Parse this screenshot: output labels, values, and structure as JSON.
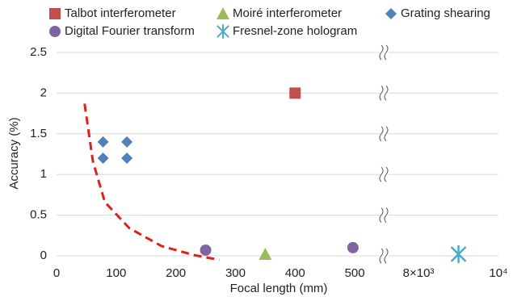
{
  "chart_data": {
    "type": "scatter",
    "x_label": "Focal length (mm)",
    "y_label": "Accuracy (%)",
    "ylim": [
      0,
      2.5
    ],
    "yticks": [
      0,
      0.5,
      1,
      1.5,
      2,
      2.5
    ],
    "x_segments": [
      {
        "xlim": [
          0,
          550
        ],
        "xticks": [
          0,
          100,
          200,
          300,
          400,
          500
        ]
      },
      {
        "xlim": [
          7150,
          10000
        ],
        "xticks": [
          {
            "value": 8000,
            "label": "8×10³"
          },
          {
            "value": 10000,
            "label": "10⁴"
          }
        ]
      }
    ],
    "grid": true,
    "legend": "top",
    "series": [
      {
        "name": "Talbot interferometer",
        "color": "#c0504d",
        "marker": "square",
        "x": [
          400
        ],
        "values": [
          2
        ]
      },
      {
        "name": "Moiré interferometer",
        "color": "#9bbb59",
        "marker": "triangle",
        "x": [
          350
        ],
        "values": [
          0.02
        ]
      },
      {
        "name": "Grating shearing",
        "color": "#4f81bd",
        "marker": "diamond",
        "x": [
          78,
          118,
          78,
          118
        ],
        "values": [
          1.4,
          1.4,
          1.2,
          1.2
        ]
      },
      {
        "name": "Digital Fourier transform",
        "color": "#8064a2",
        "marker": "circle",
        "x": [
          250,
          497
        ],
        "values": [
          0.07,
          0.1
        ]
      },
      {
        "name": "Fresnel-zone hologram",
        "color": "#4bacc6",
        "marker": "asterisk",
        "x": [
          9000
        ],
        "values": [
          0.02
        ]
      }
    ],
    "curve": {
      "color": "#e0201b",
      "style": "dashed",
      "x": [
        47,
        61,
        81,
        122,
        176,
        230,
        273
      ],
      "values": [
        1.87,
        1.16,
        0.66,
        0.34,
        0.12,
        0.01,
        -0.05
      ]
    }
  }
}
